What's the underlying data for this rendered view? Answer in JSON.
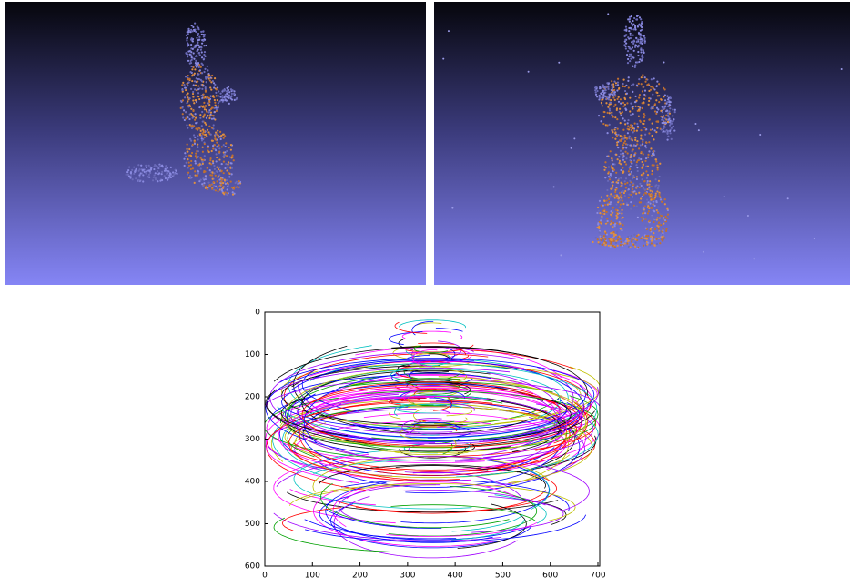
{
  "chart_data": {
    "type": "line",
    "xlim": [
      0,
      700
    ],
    "ylim": [
      0,
      600
    ],
    "xticks": [
      0,
      100,
      200,
      300,
      400,
      500,
      600,
      700
    ],
    "yticks": [
      0,
      100,
      200,
      300,
      400,
      500,
      600
    ],
    "y_inverted": true
  }
}
